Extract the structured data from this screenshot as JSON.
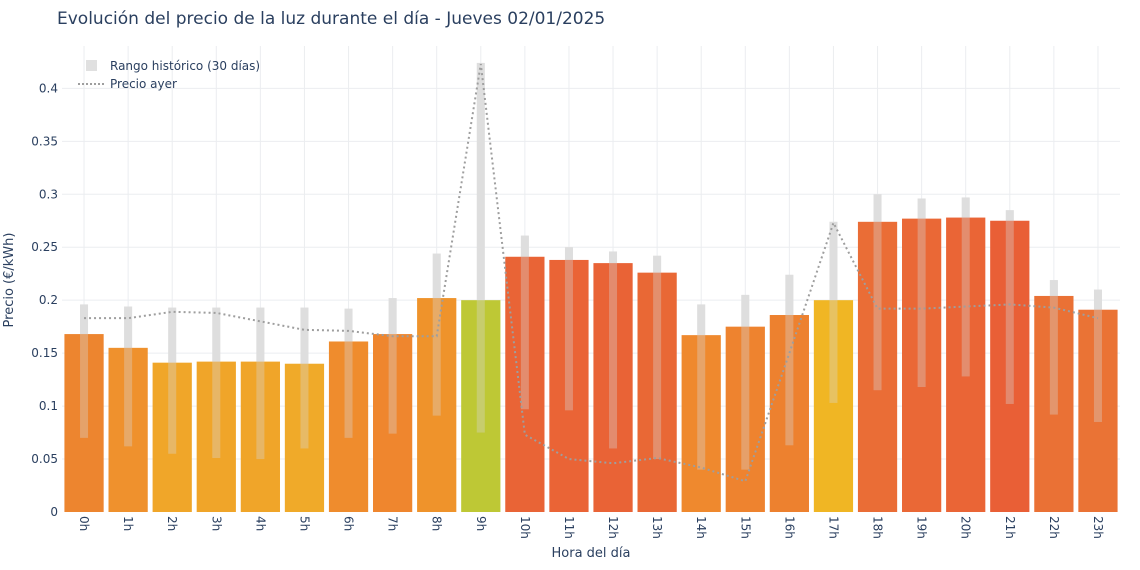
{
  "chart_data": {
    "type": "bar",
    "title": "Evolución del precio de la luz durante el día - Jueves 02/01/2025",
    "xlabel": "Hora del día",
    "ylabel": "Precio (€/kWh)",
    "ylim": [
      0,
      0.44
    ],
    "yticks": [
      0,
      0.05,
      0.1,
      0.15,
      0.2,
      0.25,
      0.3,
      0.35,
      0.4
    ],
    "ytick_labels": [
      "0",
      "0.05",
      "0.1",
      "0.15",
      "0.2",
      "0.25",
      "0.3",
      "0.35",
      "0.4"
    ],
    "grid": true,
    "legend_position": "top-left",
    "categories": [
      "0h",
      "1h",
      "2h",
      "3h",
      "4h",
      "5h",
      "6h",
      "7h",
      "8h",
      "9h",
      "10h",
      "11h",
      "12h",
      "13h",
      "14h",
      "15h",
      "16h",
      "17h",
      "18h",
      "19h",
      "20h",
      "21h",
      "22h",
      "23h"
    ],
    "values": [
      0.168,
      0.155,
      0.141,
      0.142,
      0.142,
      0.14,
      0.161,
      0.168,
      0.202,
      0.2,
      0.241,
      0.238,
      0.235,
      0.226,
      0.167,
      0.175,
      0.186,
      0.2,
      0.274,
      0.277,
      0.278,
      0.275,
      0.204,
      0.191
    ],
    "bar_colors": [
      "#ec8128",
      "#ee8d26",
      "#f0a322",
      "#f0a222",
      "#f0a222",
      "#f0a722",
      "#ee8826",
      "#ee8227",
      "#ee8f24",
      "#bcc62e",
      "#e85f2f",
      "#e95f2f",
      "#e85e2f",
      "#e8632e",
      "#ee8527",
      "#ed7f28",
      "#ec7d28",
      "#efb41d",
      "#e96830",
      "#e96330",
      "#e96030",
      "#e85a30",
      "#e96c2e",
      "#e96e2e"
    ],
    "series": [
      {
        "name": "Rango histórico (30 días)",
        "type": "range",
        "color": "#e0e0e0",
        "low": [
          0.07,
          0.062,
          0.055,
          0.051,
          0.05,
          0.06,
          0.07,
          0.074,
          0.091,
          0.075,
          0.097,
          0.096,
          0.06,
          0.05,
          0.04,
          0.04,
          0.063,
          0.103,
          0.115,
          0.118,
          0.128,
          0.102,
          0.092,
          0.085
        ],
        "high": [
          0.196,
          0.194,
          0.193,
          0.193,
          0.193,
          0.193,
          0.192,
          0.202,
          0.244,
          0.424,
          0.261,
          0.25,
          0.246,
          0.242,
          0.196,
          0.205,
          0.224,
          0.274,
          0.3,
          0.296,
          0.297,
          0.285,
          0.219,
          0.21
        ]
      },
      {
        "name": "Precio ayer",
        "type": "line",
        "color": "#9e9e9e",
        "values": [
          0.183,
          0.183,
          0.189,
          0.188,
          0.18,
          0.172,
          0.171,
          0.166,
          0.166,
          0.423,
          0.073,
          0.05,
          0.046,
          0.051,
          0.042,
          0.029,
          0.15,
          0.273,
          0.192,
          0.192,
          0.194,
          0.196,
          0.193,
          0.183
        ]
      }
    ]
  }
}
